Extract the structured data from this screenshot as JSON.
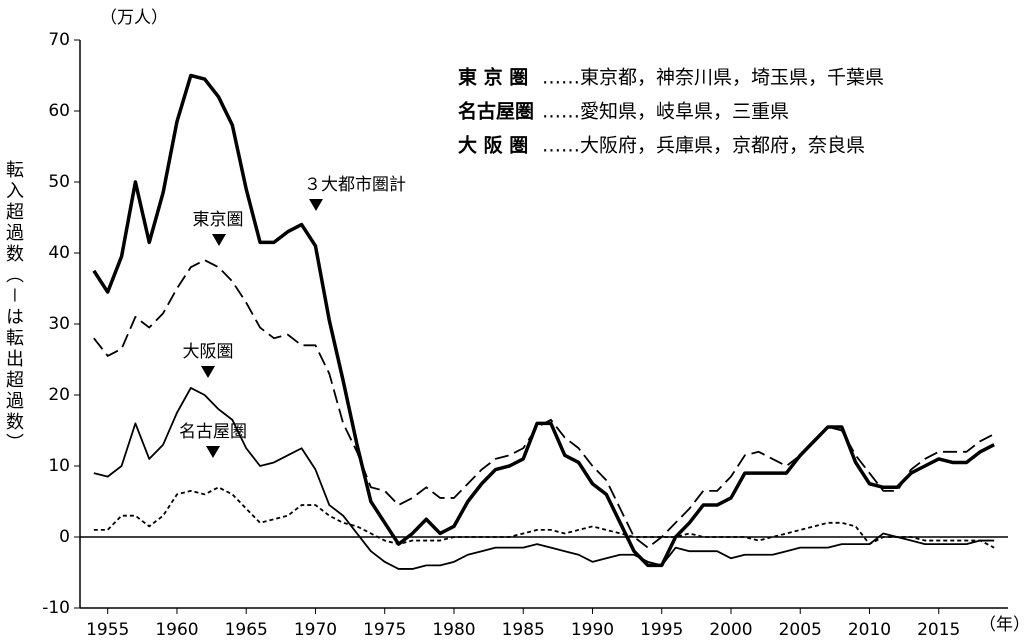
{
  "chart_data": {
    "type": "line",
    "y_unit": "（万人）",
    "x_unit": "（年）",
    "ylabel": "転入超過数（－は転出超過数）",
    "xlim": [
      1953,
      2020
    ],
    "ylim": [
      -10,
      70
    ],
    "xticks": [
      1955,
      1960,
      1965,
      1970,
      1975,
      1980,
      1985,
      1990,
      1995,
      2000,
      2005,
      2010,
      2015
    ],
    "yticks": [
      -10,
      0,
      10,
      20,
      30,
      40,
      50,
      60,
      70
    ],
    "x": [
      1954,
      1955,
      1956,
      1957,
      1958,
      1959,
      1960,
      1961,
      1962,
      1963,
      1964,
      1965,
      1966,
      1967,
      1968,
      1969,
      1970,
      1971,
      1972,
      1973,
      1974,
      1975,
      1976,
      1977,
      1978,
      1979,
      1980,
      1981,
      1982,
      1983,
      1984,
      1985,
      1986,
      1987,
      1988,
      1989,
      1990,
      1991,
      1992,
      1993,
      1994,
      1995,
      1996,
      1997,
      1998,
      1999,
      2000,
      2001,
      2002,
      2003,
      2004,
      2005,
      2006,
      2007,
      2008,
      2009,
      2010,
      2011,
      2012,
      2013,
      2014,
      2015,
      2016,
      2017,
      2018,
      2019
    ],
    "series": [
      {
        "name": "３大都市圏計",
        "color": "#000000",
        "line_style": "solid",
        "width": 3.5,
        "values": [
          37.5,
          34.5,
          39.5,
          50,
          41.5,
          48.5,
          58.5,
          65,
          64.5,
          62,
          58,
          49,
          41.5,
          41.5,
          43,
          44,
          41,
          30.5,
          22,
          13,
          5,
          2,
          -1,
          0.5,
          2.5,
          0.5,
          1.5,
          5,
          7.5,
          9.5,
          10,
          11,
          16,
          16,
          11.5,
          10.5,
          7.5,
          6,
          2,
          -2,
          -4,
          -4,
          0,
          2,
          4.5,
          4.5,
          5.5,
          9,
          9,
          9,
          9,
          11.5,
          13.5,
          15.5,
          15.5,
          10.5,
          7.5,
          7,
          7,
          9,
          10,
          11,
          10.5,
          10.5,
          12,
          13
        ]
      },
      {
        "name": "東京圏",
        "color": "#000000",
        "line_style": "dashed",
        "width": 1.8,
        "values": [
          28,
          25.5,
          26.5,
          31,
          29.5,
          31.5,
          35,
          38,
          39,
          38,
          36,
          33,
          29.5,
          28,
          28.5,
          27,
          27,
          23,
          16,
          12,
          7,
          6.5,
          4.5,
          5.5,
          7,
          5.5,
          5.5,
          7.5,
          9.5,
          11,
          11.5,
          12.5,
          15.5,
          16.5,
          14,
          12.5,
          10,
          8,
          4,
          0,
          -1.5,
          0,
          2,
          4,
          6.5,
          6.5,
          8.5,
          11.5,
          12,
          11,
          10,
          11.5,
          13.5,
          15.5,
          15,
          11.5,
          9,
          6.5,
          6.5,
          9.5,
          11,
          12,
          12,
          12,
          13.5,
          14.5
        ]
      },
      {
        "name": "大阪圏",
        "color": "#000000",
        "line_style": "solid",
        "width": 1.8,
        "values": [
          9,
          8.5,
          10,
          16,
          11,
          13,
          17.5,
          21,
          20,
          18,
          16.5,
          12.5,
          10,
          10.5,
          11.5,
          12.5,
          9.5,
          4.5,
          3,
          0.5,
          -2,
          -3.5,
          -4.5,
          -4.5,
          -4,
          -4,
          -3.5,
          -2.5,
          -2,
          -1.5,
          -1.5,
          -1.5,
          -1,
          -1.5,
          -2,
          -2.5,
          -3.5,
          -3,
          -2.5,
          -2.5,
          -3.5,
          -4,
          -1.5,
          -2,
          -2,
          -2,
          -3,
          -2.5,
          -2.5,
          -2.5,
          -2,
          -1.5,
          -1.5,
          -1.5,
          -1,
          -1,
          -1,
          0.5,
          0,
          -0.5,
          -1,
          -1,
          -1,
          -1,
          -0.5,
          -0.5
        ]
      },
      {
        "name": "名古屋圏",
        "color": "#000000",
        "line_style": "dotted",
        "width": 1.8,
        "values": [
          1,
          1,
          3,
          3,
          1.5,
          3,
          6,
          6.5,
          6,
          7,
          6,
          4,
          2,
          2.5,
          3,
          4.5,
          4.5,
          3,
          2,
          1.5,
          0.5,
          -0.5,
          -1,
          -0.5,
          -0.5,
          -0.5,
          0,
          0,
          0,
          0,
          0,
          0.5,
          1,
          1,
          0.5,
          1,
          1.5,
          1,
          0.5,
          0,
          0,
          0,
          0,
          0.5,
          0,
          0,
          0,
          0,
          -0.5,
          0,
          0.5,
          1,
          1.5,
          2,
          2,
          1.5,
          -1,
          0,
          0,
          0,
          -0.5,
          -0.5,
          -0.5,
          -0.5,
          -0.5,
          -1.5
        ]
      }
    ],
    "notes": [
      {
        "name": "東 京 圏",
        "members": "……東京都，神奈川県，埼玉県，千葉県"
      },
      {
        "name": "名古屋圏",
        "members": "……愛知県，岐阜県，三重県"
      },
      {
        "name": "大 阪 圏",
        "members": "……大阪府，兵庫県，京都府，奈良県"
      }
    ]
  }
}
